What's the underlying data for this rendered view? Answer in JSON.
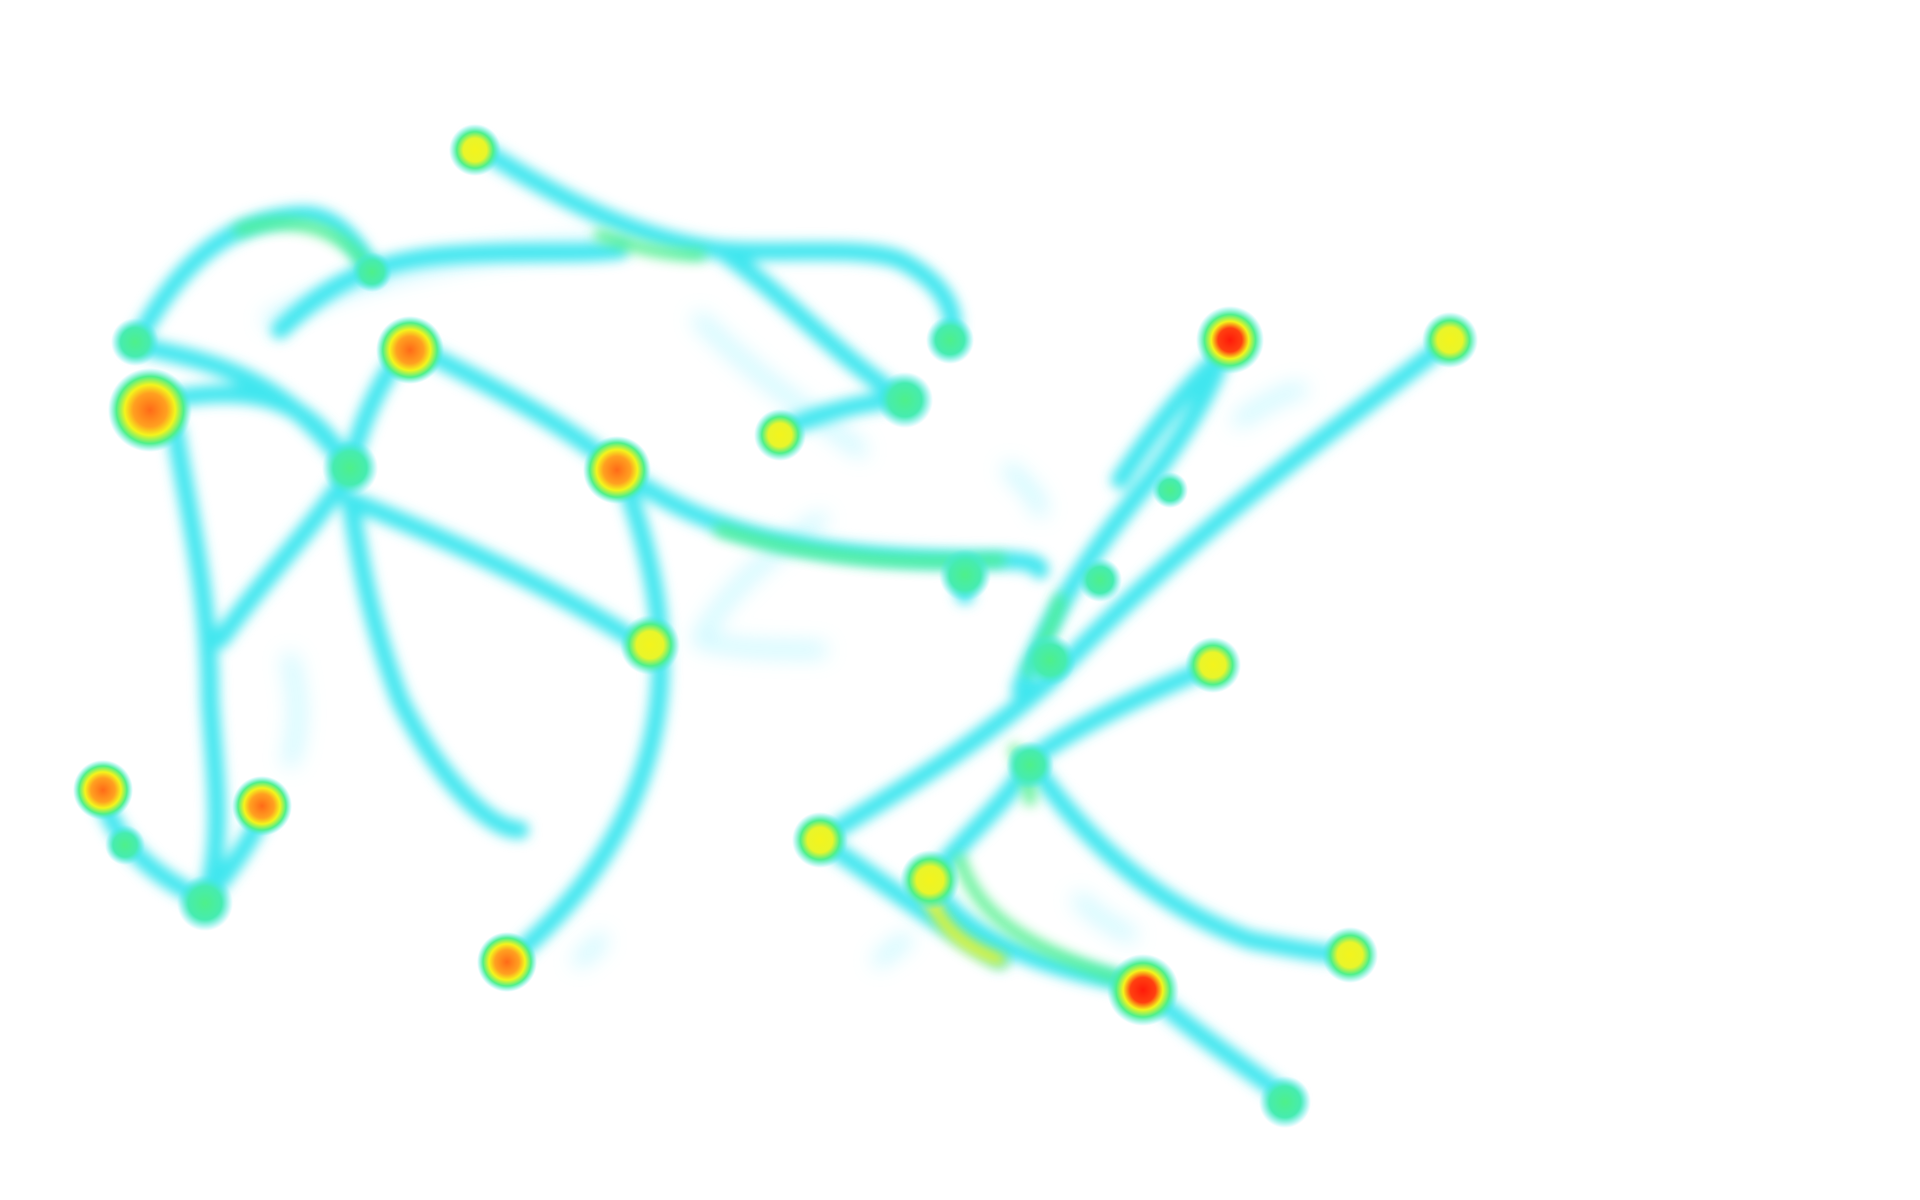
{
  "heatmap": {
    "kind": "gaze-trace-heatmap",
    "gradient": [
      "#7ff0ff",
      "#3fe6ef",
      "#4ef08a",
      "#f4f41c",
      "#ff7a18",
      "#ff1a0a"
    ],
    "background": "#ffffff",
    "path_color": "#3fe6ef"
  }
}
